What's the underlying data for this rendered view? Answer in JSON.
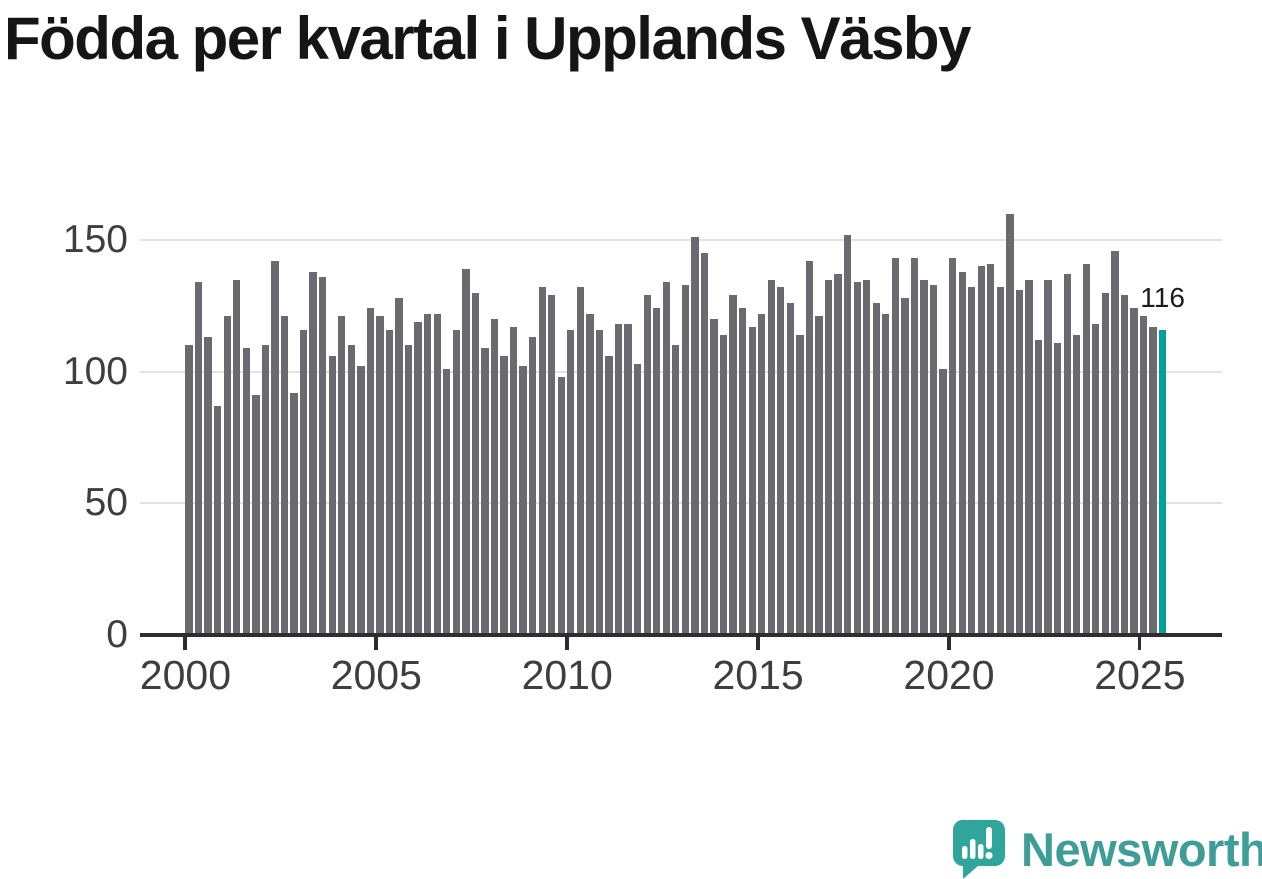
{
  "title": "Födda per kvartal i Upplands Väsby",
  "chart_data": {
    "type": "bar",
    "title": "Födda per kvartal i Upplands Väsby",
    "x_start": "2000-Q1",
    "x_end": "2025-Q3",
    "x_unit": "quarter",
    "values": [
      110,
      134,
      113,
      87,
      121,
      135,
      109,
      91,
      110,
      142,
      121,
      92,
      116,
      138,
      136,
      106,
      121,
      110,
      102,
      124,
      121,
      116,
      128,
      110,
      119,
      122,
      122,
      101,
      116,
      139,
      130,
      109,
      120,
      106,
      117,
      102,
      113,
      132,
      129,
      98,
      116,
      132,
      122,
      116,
      106,
      118,
      118,
      103,
      129,
      124,
      134,
      110,
      133,
      151,
      145,
      120,
      114,
      129,
      124,
      117,
      122,
      135,
      132,
      126,
      114,
      142,
      121,
      135,
      137,
      152,
      134,
      135,
      126,
      122,
      143,
      128,
      143,
      135,
      133,
      101,
      143,
      138,
      132,
      140,
      141,
      132,
      160,
      131,
      135,
      112,
      135,
      111,
      137,
      114,
      141,
      118,
      130,
      146,
      129,
      124,
      121,
      117,
      116
    ],
    "highlight_last": true,
    "annotation": {
      "text": "116",
      "target": "2025-Q3"
    },
    "y_ticks": [
      0,
      50,
      100,
      150
    ],
    "x_tick_years": [
      2000,
      2005,
      2010,
      2015,
      2020,
      2025
    ],
    "ylim": [
      0,
      165
    ],
    "legend": "none",
    "grid": "horizontal",
    "colors": {
      "bar": "#6a6a70",
      "highlight": "#00a19a",
      "gridline": "#e3e3e3",
      "axis": "#2d2d2d",
      "tick_label": "#3e3e3e",
      "annotation": "#1d1d1d",
      "title": "#151515",
      "background": "#ffffff"
    }
  },
  "branding": {
    "logo_text": "Newsworthy",
    "logo_icon": "newsworthy-speech-bubble-bar-chart-icon",
    "icon_color": "#2fa59c",
    "icon_glyph_color": "#ffffff",
    "text_color": "#3e9d96"
  }
}
